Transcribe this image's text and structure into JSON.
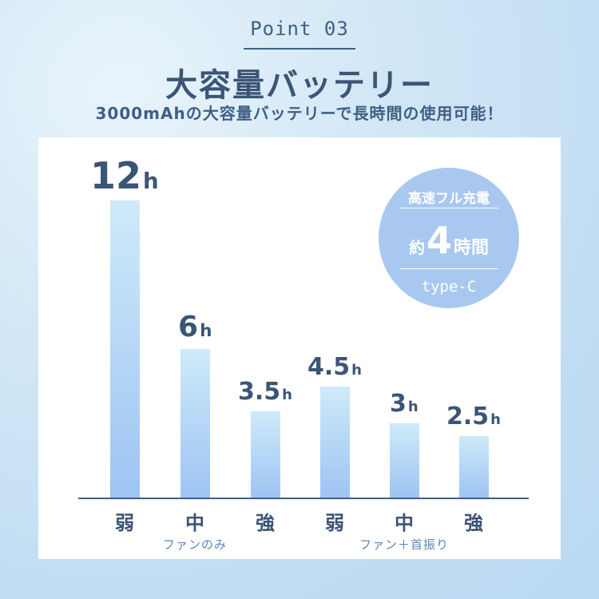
{
  "header": {
    "point_label": "Point 03",
    "title": "大容量バッテリー",
    "subtitle": "3000mAhの大容量バッテリーで長時間の使用可能！"
  },
  "badge": {
    "top": "高速フル充電",
    "prefix": "約",
    "number": "4",
    "suffix": "時間",
    "bottom": "type-C"
  },
  "chart_data": {
    "type": "bar",
    "categories": [
      "弱",
      "中",
      "強",
      "弱",
      "中",
      "強"
    ],
    "groups": [
      "ファンのみ",
      "ファン＋首振り"
    ],
    "values": [
      12,
      6,
      3.5,
      4.5,
      3,
      2.5
    ],
    "value_labels": [
      {
        "num": "12",
        "unit": "h"
      },
      {
        "num": "6",
        "unit": "h"
      },
      {
        "num": "3.5",
        "unit": "h"
      },
      {
        "num": "4.5",
        "unit": "h"
      },
      {
        "num": "3",
        "unit": "h"
      },
      {
        "num": "2.5",
        "unit": "h"
      }
    ],
    "colors": {
      "bar_top": "#cfeaf9",
      "bar_bottom": "#9fc3f3",
      "text": "#3b5576"
    }
  }
}
